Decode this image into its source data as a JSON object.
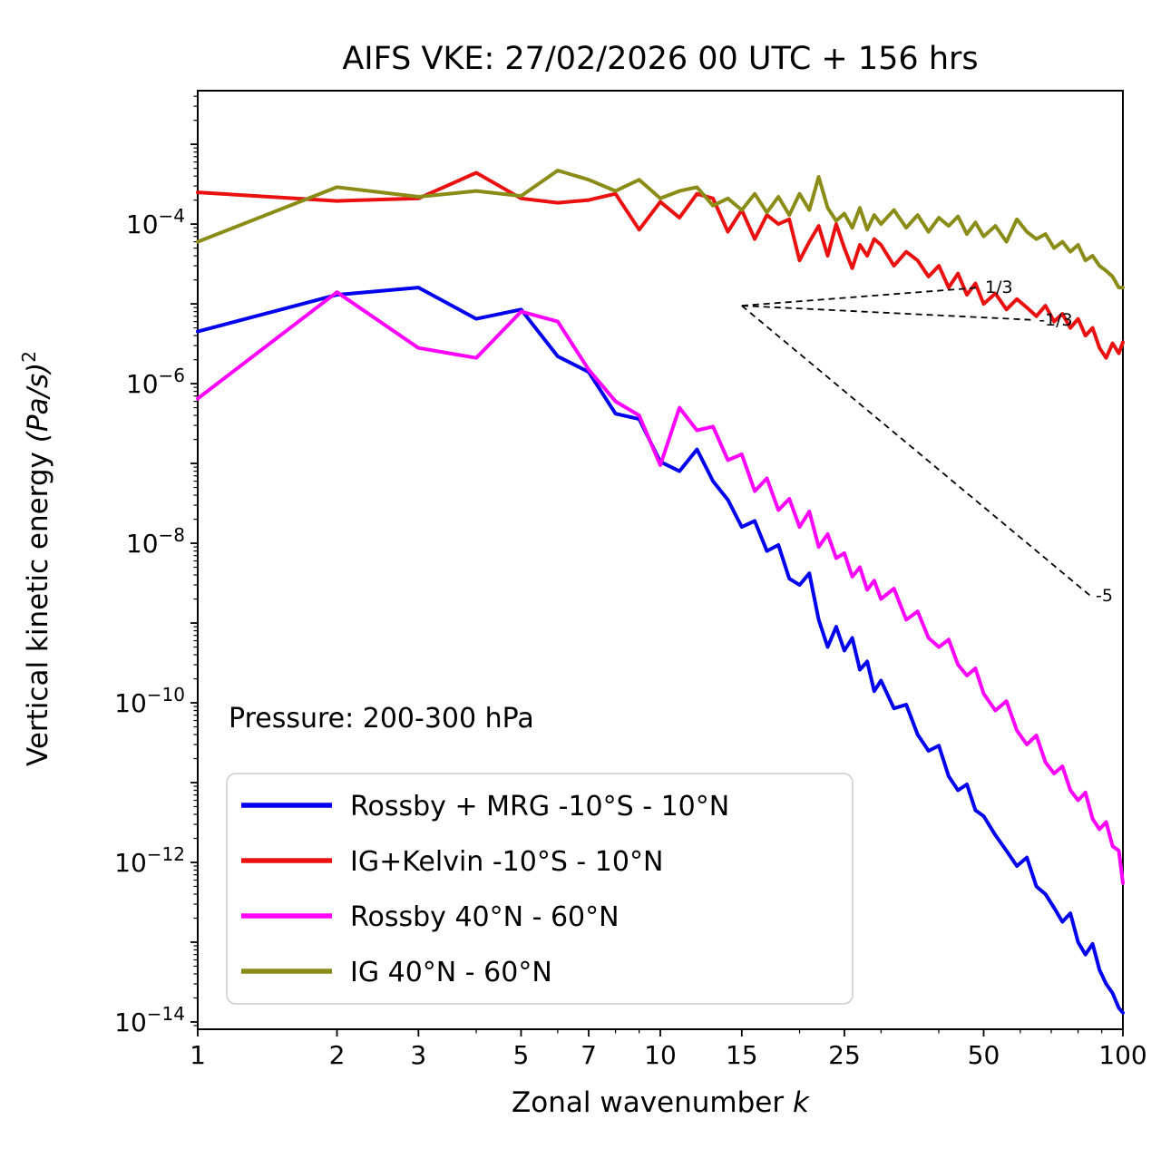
{
  "chart_data": {
    "type": "line",
    "title": "AIFS VKE: 27/02/2026 00 UTC + 156 hrs",
    "xlabel_parts": {
      "text": "Zonal wavenumber ",
      "italic": "k"
    },
    "ylabel_parts": {
      "text": "Vertical kinetic energy ",
      "italic": "(Pa/s)",
      "sup": "2"
    },
    "annotation": "Pressure: 200-300 hPa",
    "xscale": "log",
    "yscale": "log",
    "xlim": [
      1,
      100
    ],
    "ylim": [
      8.1e-15,
      0.0047
    ],
    "x_ticks": [
      1,
      2,
      3,
      5,
      7,
      10,
      15,
      25,
      50,
      100
    ],
    "y_tick_exponents": [
      -4,
      -6,
      -8,
      -10,
      -12,
      -14
    ],
    "grid": false,
    "legend_position": "lower left",
    "series": [
      {
        "name": "Rossby + MRG -10°S - 10°N",
        "color": "#0000ee",
        "points": [
          [
            1,
            4.5e-06
          ],
          [
            2,
            1.3e-05
          ],
          [
            3,
            1.6e-05
          ],
          [
            4,
            6.5e-06
          ],
          [
            5,
            8.5e-06
          ],
          [
            6,
            2.2e-06
          ],
          [
            7,
            1.4e-06
          ],
          [
            8,
            4.2e-07
          ],
          [
            9,
            3.6e-07
          ],
          [
            10,
            1.05e-07
          ],
          [
            11,
            8e-08
          ],
          [
            12,
            1.5e-07
          ],
          [
            13,
            6e-08
          ],
          [
            14,
            3.5e-08
          ],
          [
            15,
            1.6e-08
          ],
          [
            16,
            1.9e-08
          ],
          [
            17,
            8e-09
          ],
          [
            18,
            9.5e-09
          ],
          [
            19,
            3.6e-09
          ],
          [
            20,
            3e-09
          ],
          [
            21,
            4.2e-09
          ],
          [
            22,
            1.1e-09
          ],
          [
            23,
            5e-10
          ],
          [
            24,
            9e-10
          ],
          [
            25,
            4.5e-10
          ],
          [
            26,
            6.5e-10
          ],
          [
            27,
            2.6e-10
          ],
          [
            28,
            3.3e-10
          ],
          [
            29,
            1.4e-10
          ],
          [
            30,
            1.9e-10
          ],
          [
            32,
            8.5e-11
          ],
          [
            34,
            9.5e-11
          ],
          [
            36,
            4e-11
          ],
          [
            38,
            2.5e-11
          ],
          [
            40,
            2.9e-11
          ],
          [
            42,
            1.2e-11
          ],
          [
            44,
            8e-12
          ],
          [
            46,
            9.5e-12
          ],
          [
            48,
            4.5e-12
          ],
          [
            50,
            3.8e-12
          ],
          [
            53,
            2.2e-12
          ],
          [
            56,
            1.4e-12
          ],
          [
            59,
            9e-13
          ],
          [
            62,
            1.15e-12
          ],
          [
            65,
            5e-13
          ],
          [
            68,
            4e-13
          ],
          [
            71,
            2.7e-13
          ],
          [
            74,
            1.8e-13
          ],
          [
            77,
            2.3e-13
          ],
          [
            80,
            1e-13
          ],
          [
            83,
            7e-14
          ],
          [
            86,
            9.5e-14
          ],
          [
            89,
            4.5e-14
          ],
          [
            92,
            3e-14
          ],
          [
            95,
            2.3e-14
          ],
          [
            98,
            1.5e-14
          ],
          [
            100,
            1.3e-14
          ]
        ]
      },
      {
        "name": "IG+Kelvin -10°S - 10°N",
        "color": "#ea1010",
        "points": [
          [
            1,
            0.00025
          ],
          [
            2,
            0.000195
          ],
          [
            3,
            0.00021
          ],
          [
            4,
            0.00044
          ],
          [
            5,
            0.00021
          ],
          [
            6,
            0.000185
          ],
          [
            7,
            0.0002
          ],
          [
            8,
            0.00024
          ],
          [
            9,
            8.5e-05
          ],
          [
            10,
            0.00019
          ],
          [
            11,
            0.00012
          ],
          [
            12,
            0.00024
          ],
          [
            13,
            0.00021
          ],
          [
            14,
            8e-05
          ],
          [
            15,
            0.00015
          ],
          [
            16,
            6.5e-05
          ],
          [
            17,
            0.00013
          ],
          [
            18,
            0.0001
          ],
          [
            19,
            0.000115
          ],
          [
            20,
            3.5e-05
          ],
          [
            21,
            6e-05
          ],
          [
            22,
            9.5e-05
          ],
          [
            23,
            4e-05
          ],
          [
            24,
            0.0001
          ],
          [
            25,
            5e-05
          ],
          [
            26,
            2.8e-05
          ],
          [
            27,
            5.5e-05
          ],
          [
            28,
            4e-05
          ],
          [
            29,
            6.5e-05
          ],
          [
            30,
            5.5e-05
          ],
          [
            32,
            3e-05
          ],
          [
            34,
            4.5e-05
          ],
          [
            36,
            3.5e-05
          ],
          [
            38,
            2.2e-05
          ],
          [
            40,
            3e-05
          ],
          [
            42,
            1.6e-05
          ],
          [
            44,
            2.4e-05
          ],
          [
            46,
            1.3e-05
          ],
          [
            48,
            1.8e-05
          ],
          [
            50,
            1e-05
          ],
          [
            53,
            1.35e-05
          ],
          [
            56,
            8.5e-06
          ],
          [
            59,
            1.15e-05
          ],
          [
            62,
            9e-06
          ],
          [
            65,
            7e-06
          ],
          [
            68,
            9.5e-06
          ],
          [
            71,
            6e-06
          ],
          [
            74,
            7.5e-06
          ],
          [
            77,
            5e-06
          ],
          [
            80,
            6.5e-06
          ],
          [
            83,
            4e-06
          ],
          [
            86,
            5e-06
          ],
          [
            89,
            2.8e-06
          ],
          [
            92,
            2.1e-06
          ],
          [
            95,
            3.2e-06
          ],
          [
            98,
            2.4e-06
          ],
          [
            100,
            3.3e-06
          ]
        ]
      },
      {
        "name": "Rossby 40°N - 60°N",
        "color": "#ff00ff",
        "points": [
          [
            1,
            6.5e-07
          ],
          [
            2,
            1.4e-05
          ],
          [
            3,
            2.8e-06
          ],
          [
            4,
            2.1e-06
          ],
          [
            5,
            8e-06
          ],
          [
            6,
            6e-06
          ],
          [
            7,
            1.5e-06
          ],
          [
            8,
            6e-07
          ],
          [
            9,
            4e-07
          ],
          [
            10,
            9.5e-08
          ],
          [
            11,
            5e-07
          ],
          [
            12,
            2.6e-07
          ],
          [
            13,
            2.9e-07
          ],
          [
            14,
            1.1e-07
          ],
          [
            15,
            1.3e-07
          ],
          [
            16,
            4.5e-08
          ],
          [
            17,
            6.5e-08
          ],
          [
            18,
            2.6e-08
          ],
          [
            19,
            3.6e-08
          ],
          [
            20,
            1.6e-08
          ],
          [
            21,
            2.5e-08
          ],
          [
            22,
            9e-09
          ],
          [
            23,
            1.3e-08
          ],
          [
            24,
            6.5e-09
          ],
          [
            25,
            7.5e-09
          ],
          [
            26,
            3.8e-09
          ],
          [
            27,
            5e-09
          ],
          [
            28,
            2.6e-09
          ],
          [
            29,
            3.4e-09
          ],
          [
            30,
            2e-09
          ],
          [
            32,
            2.7e-09
          ],
          [
            34,
            1.1e-09
          ],
          [
            36,
            1.4e-09
          ],
          [
            38,
            6.5e-10
          ],
          [
            40,
            5e-10
          ],
          [
            42,
            6.2e-10
          ],
          [
            44,
            3e-10
          ],
          [
            46,
            2.2e-10
          ],
          [
            48,
            2.7e-10
          ],
          [
            50,
            1.3e-10
          ],
          [
            53,
            8e-11
          ],
          [
            56,
            1.05e-10
          ],
          [
            59,
            4.5e-11
          ],
          [
            62,
            3e-11
          ],
          [
            65,
            3.9e-11
          ],
          [
            68,
            1.8e-11
          ],
          [
            71,
            1.3e-11
          ],
          [
            74,
            1.6e-11
          ],
          [
            77,
            8e-12
          ],
          [
            80,
            6e-12
          ],
          [
            83,
            7.5e-12
          ],
          [
            86,
            3.5e-12
          ],
          [
            89,
            2.6e-12
          ],
          [
            92,
            3.2e-12
          ],
          [
            95,
            1.6e-12
          ],
          [
            98,
            1.4e-12
          ],
          [
            100,
            5.5e-13
          ]
        ]
      },
      {
        "name": "IG 40°N - 60°N",
        "color": "#8b8b17",
        "points": [
          [
            1,
            6e-05
          ],
          [
            2,
            0.00029
          ],
          [
            3,
            0.00022
          ],
          [
            4,
            0.00026
          ],
          [
            5,
            0.000225
          ],
          [
            6,
            0.00047
          ],
          [
            7,
            0.00036
          ],
          [
            8,
            0.00026
          ],
          [
            9,
            0.00036
          ],
          [
            10,
            0.00021
          ],
          [
            11,
            0.00026
          ],
          [
            12,
            0.00029
          ],
          [
            13,
            0.00017
          ],
          [
            14,
            0.00021
          ],
          [
            15,
            0.00015
          ],
          [
            16,
            0.00024
          ],
          [
            17,
            0.00014
          ],
          [
            18,
            0.00022
          ],
          [
            19,
            0.00013
          ],
          [
            20,
            0.00024
          ],
          [
            21,
            0.00015
          ],
          [
            22,
            0.00039
          ],
          [
            23,
            0.00016
          ],
          [
            24,
            0.00011
          ],
          [
            25,
            0.000135
          ],
          [
            26,
            9e-05
          ],
          [
            27,
            0.00016
          ],
          [
            28,
            8.5e-05
          ],
          [
            29,
            0.00013
          ],
          [
            30,
            0.0001
          ],
          [
            32,
            0.00015
          ],
          [
            34,
            9e-05
          ],
          [
            36,
            0.00013
          ],
          [
            38,
            8e-05
          ],
          [
            40,
            0.00012
          ],
          [
            42,
            9.5e-05
          ],
          [
            44,
            0.000125
          ],
          [
            46,
            7.5e-05
          ],
          [
            48,
            0.000105
          ],
          [
            50,
            7e-05
          ],
          [
            53,
            9.5e-05
          ],
          [
            56,
            6e-05
          ],
          [
            59,
            0.000115
          ],
          [
            62,
            8e-05
          ],
          [
            65,
            6.5e-05
          ],
          [
            68,
            7.5e-05
          ],
          [
            71,
            5e-05
          ],
          [
            74,
            6e-05
          ],
          [
            77,
            4.5e-05
          ],
          [
            80,
            5.5e-05
          ],
          [
            83,
            3.5e-05
          ],
          [
            86,
            4e-05
          ],
          [
            89,
            3e-05
          ],
          [
            92,
            2.6e-05
          ],
          [
            95,
            2.2e-05
          ],
          [
            98,
            1.6e-05
          ],
          [
            100,
            1.6e-05
          ]
        ]
      }
    ],
    "reference_lines": [
      {
        "label": "1/3",
        "points": [
          [
            15,
            9.5e-06
          ],
          [
            49,
            1.6e-05
          ]
        ]
      },
      {
        "label": "-1/3",
        "points": [
          [
            15,
            9.5e-06
          ],
          [
            64,
            6.3e-06
          ]
        ]
      },
      {
        "label": "-5",
        "points": [
          [
            15,
            9.5e-06
          ],
          [
            85,
            2.2e-09
          ]
        ]
      }
    ]
  }
}
